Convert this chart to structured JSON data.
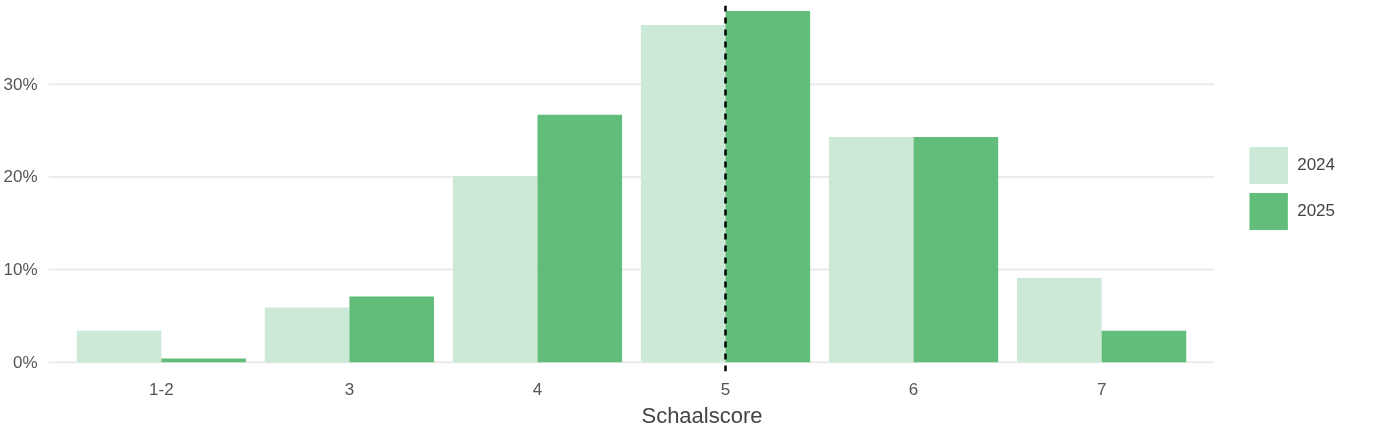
{
  "chart_data": {
    "type": "bar",
    "xlabel": "Schaalscore",
    "categories": [
      "1-2",
      "3",
      "4",
      "5",
      "6",
      "7"
    ],
    "series": [
      {
        "name": "2024",
        "color": "#cce8d6",
        "values": [
          3.4,
          5.9,
          20.1,
          36.4,
          24.3,
          9.1
        ]
      },
      {
        "name": "2025",
        "color": "#62bd7b",
        "values": [
          0.4,
          7.1,
          26.7,
          37.9,
          24.3,
          3.4
        ]
      }
    ],
    "ylim": [
      -1,
      38.5
    ],
    "yticks": [
      {
        "value": 0,
        "label": "0%"
      },
      {
        "value": 10,
        "label": "10%"
      },
      {
        "value": 20,
        "label": "20%"
      },
      {
        "value": 30,
        "label": "30%"
      }
    ],
    "grid": "y",
    "legend": "right",
    "ref_lines": [
      {
        "axis": "x",
        "value": "5",
        "line_style": "dashed",
        "color": "#000000"
      }
    ]
  }
}
